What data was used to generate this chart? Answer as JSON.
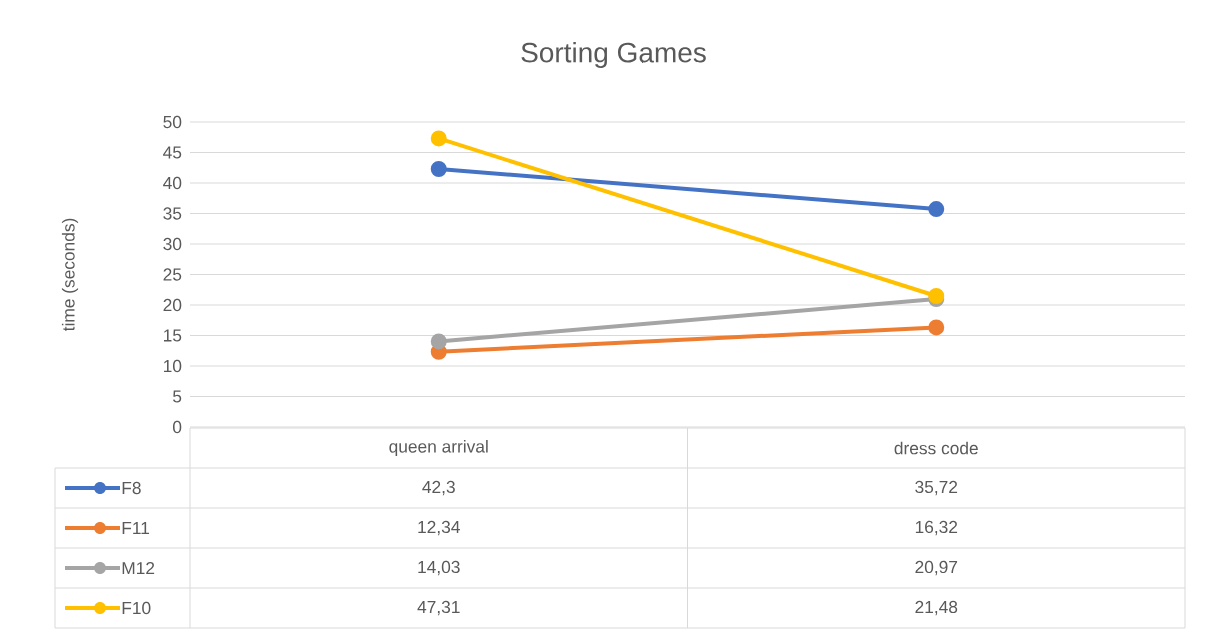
{
  "chart_data": {
    "type": "line",
    "title": "Sorting Games",
    "ylabel": "time (seconds)",
    "categories": [
      "queen arrival",
      "dress code"
    ],
    "series": [
      {
        "name": "F8",
        "color": "#4472c4",
        "values": [
          42.3,
          35.72
        ],
        "value_labels": [
          "42,3",
          "35,72"
        ]
      },
      {
        "name": "F11",
        "color": "#ed7d31",
        "values": [
          12.34,
          16.32
        ],
        "value_labels": [
          "12,34",
          "16,32"
        ]
      },
      {
        "name": "M12",
        "color": "#a5a5a5",
        "values": [
          14.03,
          20.97
        ],
        "value_labels": [
          "14,03",
          "20,97"
        ]
      },
      {
        "name": "F10",
        "color": "#ffc000",
        "values": [
          47.31,
          21.48
        ],
        "value_labels": [
          "47,31",
          "21,48"
        ]
      }
    ],
    "ylim": [
      0,
      50
    ],
    "yticks": [
      0,
      5,
      10,
      15,
      20,
      25,
      30,
      35,
      40,
      45,
      50
    ],
    "grid": "y",
    "legend": "bottom",
    "marker": "circle"
  }
}
